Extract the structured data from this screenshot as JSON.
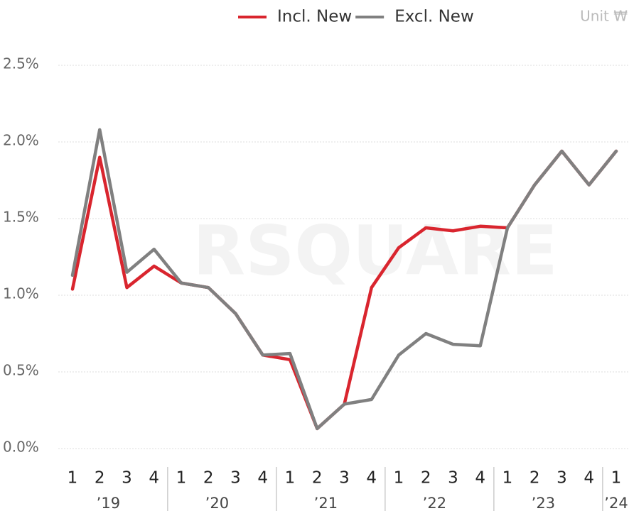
{
  "chart_data": {
    "type": "line",
    "unit": "Unit ₩",
    "watermark": "RSQUARE",
    "categories": [
      "1",
      "2",
      "3",
      "4",
      "1",
      "2",
      "3",
      "4",
      "1",
      "2",
      "3",
      "4",
      "1",
      "2",
      "3",
      "4",
      "1",
      "2",
      "3",
      "4",
      "1"
    ],
    "years": [
      "’19",
      "’20",
      "’21",
      "’22",
      "’23",
      "’24"
    ],
    "series": [
      {
        "name": "Incl. New",
        "color": "#d9252e",
        "values": [
          1.04,
          1.9,
          1.05,
          1.19,
          1.08,
          1.05,
          0.88,
          0.61,
          0.58,
          0.13,
          0.29,
          1.05,
          1.31,
          1.44,
          1.42,
          1.45,
          1.44,
          1.72,
          1.94,
          1.72,
          1.94
        ]
      },
      {
        "name": "Excl. New",
        "color": "#808080",
        "values": [
          1.13,
          2.08,
          1.15,
          1.3,
          1.08,
          1.05,
          0.88,
          0.61,
          0.62,
          0.13,
          0.29,
          0.32,
          0.61,
          0.75,
          0.68,
          0.67,
          1.44,
          1.72,
          1.94,
          1.72,
          1.94
        ]
      }
    ],
    "ylim": [
      0,
      2.5
    ],
    "yticks": [
      {
        "value": 0,
        "label": "0.0%"
      },
      {
        "value": 0.5,
        "label": "0.5%"
      },
      {
        "value": 1,
        "label": "1.0%"
      },
      {
        "value": 1.5,
        "label": "1.5%"
      },
      {
        "value": 2,
        "label": "2.0%"
      },
      {
        "value": 2.5,
        "label": "2.5%"
      }
    ],
    "grid": true
  }
}
